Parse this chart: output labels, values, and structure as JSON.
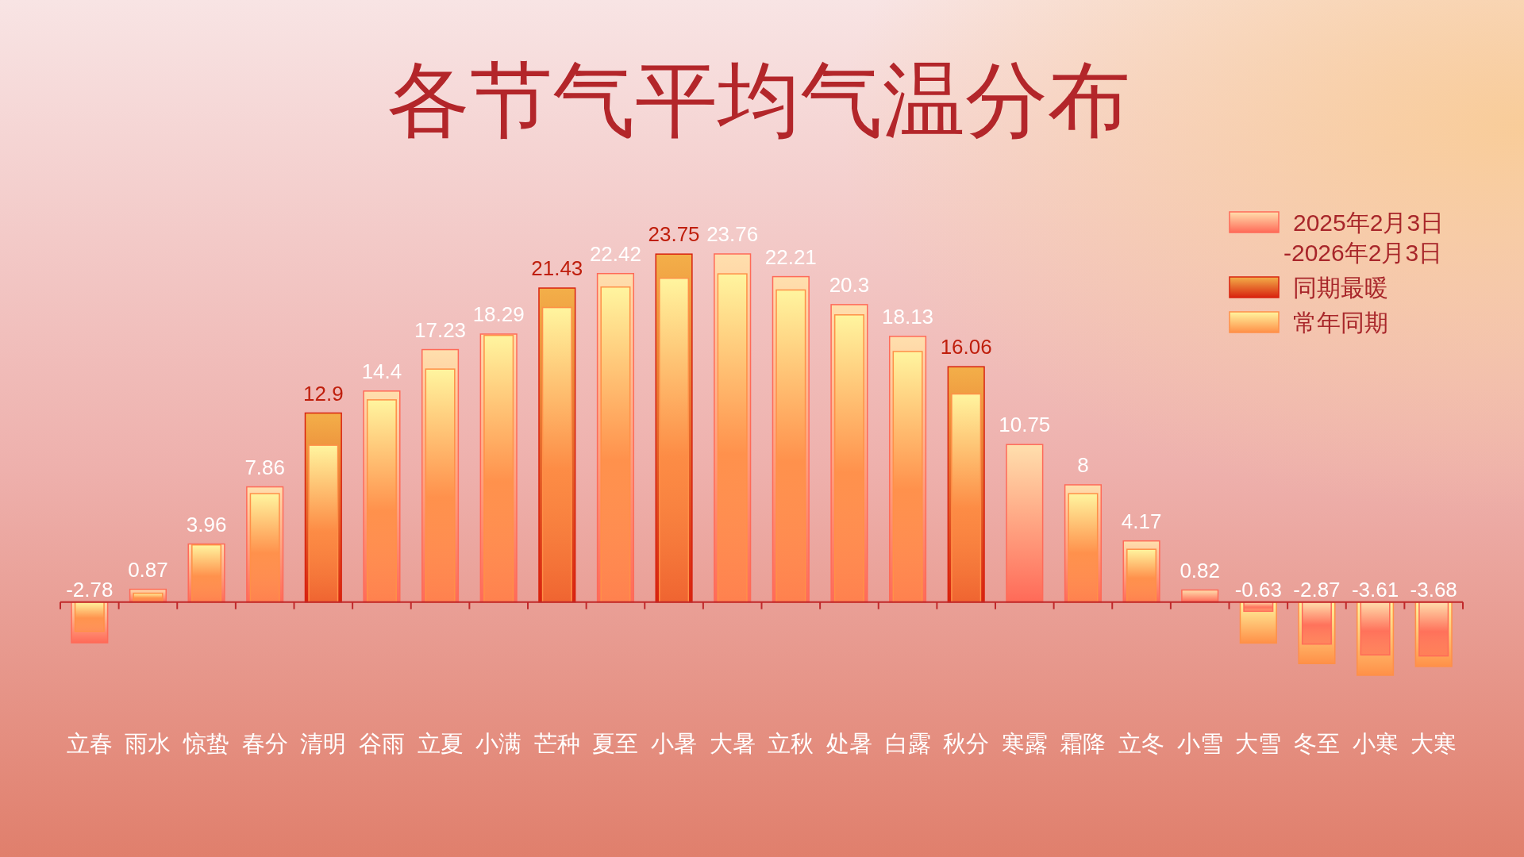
{
  "chart_data": {
    "type": "bar",
    "title": "各节气平均气温分布",
    "categories": [
      "立春",
      "雨水",
      "惊蛰",
      "春分",
      "清明",
      "谷雨",
      "立夏",
      "小满",
      "芒种",
      "夏至",
      "小暑",
      "大暑",
      "立秋",
      "处暑",
      "白露",
      "秋分",
      "寒露",
      "霜降",
      "立冬",
      "小雪",
      "大雪",
      "冬至",
      "小寒",
      "大寒"
    ],
    "series": [
      {
        "name": "2025年2月3日-2026年2月3日",
        "color": "#ff6a58",
        "values": [
          -2.78,
          0.87,
          3.96,
          7.86,
          null,
          14.4,
          17.23,
          18.29,
          null,
          22.42,
          null,
          23.76,
          22.21,
          20.3,
          18.13,
          null,
          10.75,
          8,
          4.17,
          0.82,
          -0.63,
          -2.87,
          -3.61,
          -3.68
        ],
        "value_labels": [
          "-2.78",
          "0.87",
          "3.96",
          "7.86",
          null,
          "14.4",
          "17.23",
          "18.29",
          null,
          "22.42",
          null,
          "23.76",
          "22.21",
          "20.3",
          "18.13",
          null,
          "10.75",
          "8",
          "4.17",
          "0.82",
          "-0.63",
          "-2.87",
          "-3.61",
          "-3.68"
        ]
      },
      {
        "name": "同期最暖",
        "color": "#d8220e",
        "values": [
          null,
          null,
          null,
          null,
          12.9,
          null,
          null,
          null,
          21.43,
          null,
          23.75,
          null,
          null,
          null,
          null,
          16.06,
          null,
          null,
          null,
          null,
          null,
          null,
          null,
          null
        ],
        "value_labels": [
          null,
          null,
          null,
          null,
          "12.9",
          null,
          null,
          null,
          "21.43",
          null,
          "23.75",
          null,
          null,
          null,
          null,
          "16.06",
          null,
          null,
          null,
          null,
          null,
          null,
          null,
          null
        ]
      },
      {
        "name": "常年同期",
        "color": "#ff9048",
        "values": [
          -2.0,
          0.6,
          3.9,
          7.4,
          10.7,
          13.8,
          15.9,
          18.2,
          20.1,
          21.5,
          22.1,
          22.4,
          21.3,
          19.6,
          17.1,
          14.2,
          null,
          7.4,
          3.6,
          null,
          -2.8,
          -4.2,
          -5.0,
          -4.4
        ]
      }
    ],
    "ref_lines": [
      {
        "axis": "y",
        "value": 0,
        "color": "#c0282a"
      }
    ],
    "tick_labels": "x",
    "legend": "top right"
  }
}
